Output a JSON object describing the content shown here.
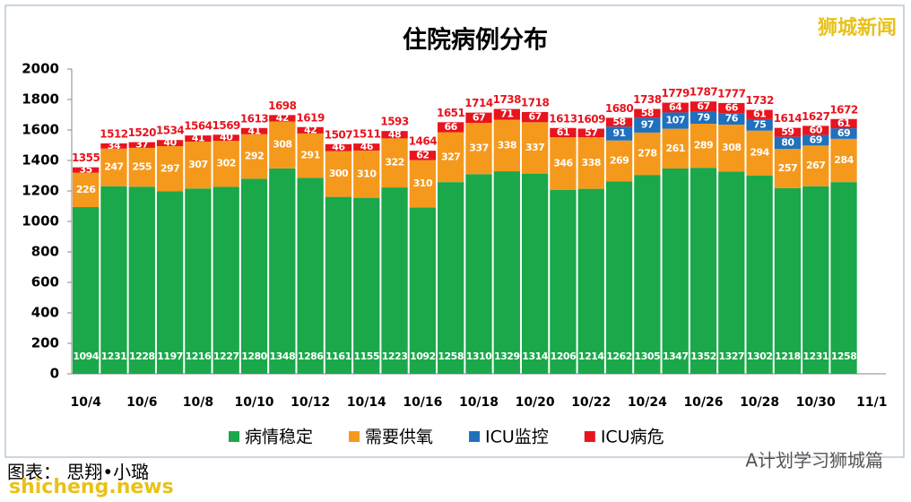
{
  "chart_data": {
    "type": "stacked_bar",
    "title": "住院病例分布",
    "categories": [
      "10/4",
      null,
      "10/6",
      null,
      "10/8",
      null,
      "10/10",
      null,
      "10/12",
      null,
      "10/14",
      null,
      "10/16",
      null,
      "10/18",
      null,
      "10/20",
      null,
      "10/22",
      null,
      "10/24",
      null,
      "10/26",
      null,
      "10/28",
      null,
      "10/30",
      null,
      "11/1"
    ],
    "series": [
      {
        "name": "病情稳定",
        "color": "#1aa84a",
        "values": [
          1094,
          1231,
          1228,
          1197,
          1216,
          1227,
          1280,
          1348,
          1286,
          1161,
          1155,
          1223,
          1092,
          1258,
          1310,
          1329,
          1314,
          1206,
          1214,
          1262,
          1305,
          1347,
          1352,
          1327,
          1302,
          1218,
          1231,
          1258,
          null
        ]
      },
      {
        "name": "需要供氧",
        "color": "#f5991c",
        "values": [
          226,
          247,
          255,
          297,
          307,
          302,
          292,
          308,
          291,
          300,
          310,
          322,
          310,
          327,
          337,
          338,
          337,
          346,
          338,
          269,
          278,
          261,
          289,
          308,
          294,
          257,
          267,
          284,
          null
        ]
      },
      {
        "name": "ICU监控",
        "color": "#1f70bf",
        "values": [
          null,
          null,
          null,
          null,
          null,
          null,
          null,
          null,
          null,
          null,
          null,
          null,
          null,
          null,
          null,
          null,
          null,
          null,
          null,
          91,
          97,
          107,
          79,
          76,
          75,
          80,
          69,
          69,
          null
        ]
      },
      {
        "name": "ICU病危",
        "color": "#e8141e",
        "values": [
          35,
          34,
          37,
          40,
          41,
          40,
          41,
          42,
          42,
          46,
          46,
          48,
          62,
          66,
          67,
          71,
          67,
          61,
          57,
          58,
          58,
          64,
          67,
          66,
          61,
          59,
          60,
          61,
          null
        ]
      }
    ],
    "totals": [
      1355,
      1512,
      1520,
      1534,
      1564,
      1569,
      1613,
      1698,
      1619,
      1507,
      1511,
      1593,
      1464,
      1651,
      1714,
      1738,
      1718,
      1613,
      1609,
      1680,
      1738,
      1779,
      1787,
      1777,
      1732,
      1614,
      1627,
      1672,
      null
    ],
    "ylim": [
      0,
      2000
    ],
    "yticks": [
      0,
      200,
      400,
      600,
      800,
      1000,
      1200,
      1400,
      1600,
      1800,
      2000
    ],
    "grid": false,
    "legend": "bottom"
  },
  "watermark": "狮城新闻",
  "credit": "图表： 思翔•小璐",
  "site": "shicheng.news",
  "wechat": "A计划学习狮城篇"
}
